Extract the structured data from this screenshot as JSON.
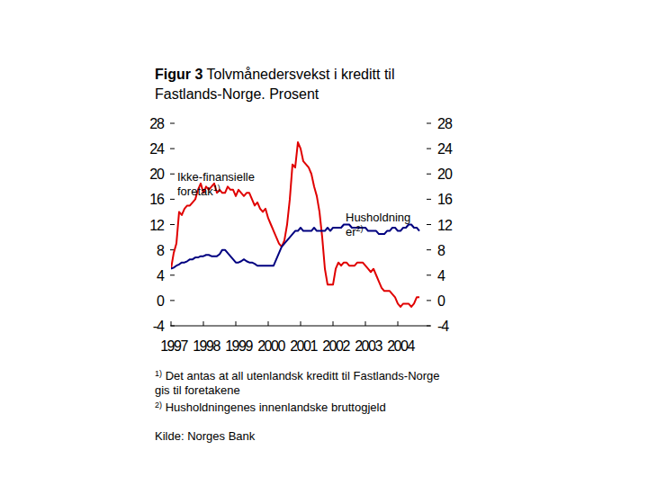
{
  "chart_data": {
    "type": "line",
    "figure_label": "Figur 3",
    "title": "Tolvmånedersvekst i kreditt til Fastlands-Norge. Prosent",
    "x": [
      1997,
      1997.083,
      1997.167,
      1997.25,
      1997.333,
      1997.417,
      1997.5,
      1997.583,
      1997.667,
      1997.75,
      1997.833,
      1997.917,
      1998,
      1998.083,
      1998.167,
      1998.25,
      1998.333,
      1998.417,
      1998.5,
      1998.583,
      1998.667,
      1998.75,
      1998.833,
      1998.917,
      1999,
      1999.083,
      1999.167,
      1999.25,
      1999.333,
      1999.417,
      1999.5,
      1999.583,
      1999.667,
      1999.75,
      1999.833,
      1999.917,
      2000,
      2000.083,
      2000.167,
      2000.25,
      2000.333,
      2000.417,
      2000.5,
      2000.583,
      2000.667,
      2000.75,
      2000.833,
      2000.917,
      2001,
      2001.083,
      2001.167,
      2001.25,
      2001.333,
      2001.417,
      2001.5,
      2001.583,
      2001.667,
      2001.75,
      2001.833,
      2001.917,
      2002,
      2002.083,
      2002.167,
      2002.25,
      2002.333,
      2002.417,
      2002.5,
      2002.583,
      2002.667,
      2002.75,
      2002.833,
      2002.917,
      2003,
      2003.083,
      2003.167,
      2003.25,
      2003.333,
      2003.417,
      2003.5,
      2003.583,
      2003.667,
      2003.75,
      2003.833,
      2003.917,
      2004,
      2004.083,
      2004.167,
      2004.25,
      2004.333,
      2004.417,
      2004.5,
      2004.583,
      2004.667
    ],
    "series": [
      {
        "name": "Ikke-finansielle foretak1)",
        "color": "#e00000",
        "values": [
          5,
          7.5,
          9,
          14,
          13.5,
          14.5,
          15,
          15,
          15.5,
          16,
          17.5,
          18.5,
          17,
          18,
          17.5,
          18,
          18.5,
          17,
          17.5,
          17,
          17,
          18,
          17.5,
          17.5,
          16.5,
          17.5,
          17,
          16.5,
          17,
          17,
          16,
          15,
          15.5,
          14.5,
          14,
          14.5,
          13,
          12,
          11,
          10,
          9,
          8.5,
          9.5,
          12,
          16,
          21.5,
          21,
          25,
          24,
          22,
          21.5,
          21,
          20,
          18,
          16.5,
          14,
          10,
          5,
          2.5,
          2.5,
          2.5,
          5,
          6,
          5.5,
          6,
          6,
          5.5,
          5.5,
          5.5,
          6,
          6,
          6,
          5.5,
          5,
          4.5,
          5,
          4,
          3,
          2,
          1.5,
          1.5,
          1.5,
          1,
          0.5,
          -0.5,
          -1,
          -0.5,
          -0.5,
          -0.5,
          -1,
          -0.5,
          0.5,
          0.5
        ]
      },
      {
        "name": "Husholdninger2)",
        "color": "#000080",
        "values": [
          5,
          5.2,
          5.5,
          5.7,
          6,
          6,
          6.2,
          6.5,
          6.5,
          6.8,
          6.8,
          7,
          7,
          7.2,
          7.2,
          7,
          7,
          7,
          7.3,
          8,
          8,
          7.5,
          7,
          6.5,
          6,
          6,
          6.2,
          6.5,
          6.2,
          6,
          6,
          5.8,
          5.5,
          5.5,
          5.5,
          5.5,
          5.5,
          5.5,
          5.5,
          6.5,
          7.5,
          8.5,
          9,
          9.5,
          10,
          10.5,
          11,
          11,
          11.5,
          11,
          11,
          11,
          11,
          11.5,
          11,
          11,
          11,
          11,
          11.5,
          11,
          11.5,
          11.5,
          11.5,
          11.5,
          12,
          12,
          12,
          11.5,
          11.5,
          11.5,
          11.5,
          11.5,
          11.5,
          11,
          11,
          11,
          11,
          10.5,
          10.5,
          10.5,
          11,
          11,
          11.5,
          11.5,
          11,
          11,
          11.5,
          11.5,
          12,
          12,
          11.5,
          11.5,
          11
        ]
      }
    ],
    "xlim": [
      1997,
      2005
    ],
    "xticks": [
      1997,
      1998,
      1999,
      2000,
      2001,
      2002,
      2003,
      2004
    ],
    "ylim": [
      -4,
      28
    ],
    "yticks": [
      -4,
      0,
      4,
      8,
      12,
      16,
      20,
      24,
      28
    ],
    "grid": false,
    "notes": [
      {
        "marker": "1)",
        "text": "Det antas at all utenlandsk kreditt til Fastlands-Norge gis til foretakene"
      },
      {
        "marker": "2)",
        "text": "Husholdningenes innenlandske bruttogjeld"
      }
    ],
    "source": "Kilde: Norges Bank"
  }
}
